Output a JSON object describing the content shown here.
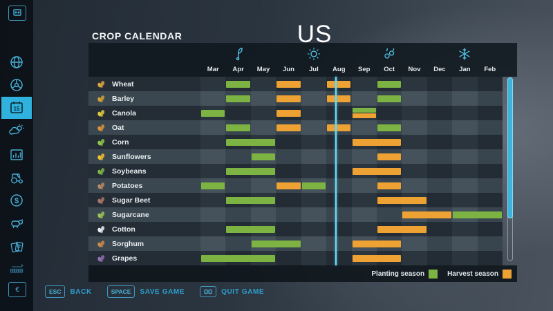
{
  "header": {
    "title": "CROP CALENDAR",
    "map_name": "US"
  },
  "sidebar": {
    "active_item": "calendar",
    "items": [
      "gamepad-key",
      "map",
      "vehicles",
      "calendar",
      "weather",
      "statistics",
      "garage",
      "finances",
      "animals",
      "contracts",
      "production-chains",
      "currency-key"
    ],
    "calendar_day": "15",
    "currency_symbol": "€"
  },
  "chart_data": {
    "type": "table",
    "title": "Crop Calendar US",
    "months": [
      "Mar",
      "Apr",
      "May",
      "Jun",
      "Jul",
      "Aug",
      "Sep",
      "Oct",
      "Nov",
      "Dec",
      "Jan",
      "Feb"
    ],
    "season_icons": [
      {
        "name": "spring-sprout-icon",
        "month_index": 1
      },
      {
        "name": "summer-sun-icon",
        "month_index": 4
      },
      {
        "name": "autumn-icon",
        "month_index": 7
      },
      {
        "name": "winter-snowflake-icon",
        "month_index": 10
      }
    ],
    "crops": [
      {
        "label": "Wheat",
        "icon_color": "#d9a53f",
        "plant": [
          1,
          7
        ],
        "harvest": [
          3,
          5
        ]
      },
      {
        "label": "Barley",
        "icon_color": "#cfa03a",
        "plant": [
          1,
          7
        ],
        "harvest": [
          3,
          5
        ]
      },
      {
        "label": "Canola",
        "icon_color": "#e0c83e",
        "plant": [
          0,
          6
        ],
        "harvest": [
          3,
          6
        ]
      },
      {
        "label": "Oat",
        "icon_color": "#d9913c",
        "plant": [
          1,
          7
        ],
        "harvest": [
          3,
          5
        ]
      },
      {
        "label": "Corn",
        "icon_color": "#8fc64a",
        "plant": [
          1,
          2
        ],
        "harvest": [
          6,
          7
        ]
      },
      {
        "label": "Sunflowers",
        "icon_color": "#f0c030",
        "plant": [
          2
        ],
        "harvest": [
          7
        ]
      },
      {
        "label": "Soybeans",
        "icon_color": "#7fb347",
        "plant": [
          1,
          2
        ],
        "harvest": [
          6,
          7
        ]
      },
      {
        "label": "Potatoes",
        "icon_color": "#b58763",
        "plant": [
          0,
          4
        ],
        "harvest": [
          3,
          7
        ]
      },
      {
        "label": "Sugar Beet",
        "icon_color": "#a9746a",
        "plant": [
          1,
          2
        ],
        "harvest": [
          7,
          8
        ]
      },
      {
        "label": "Sugarcane",
        "icon_color": "#9ac355",
        "plant": [
          10,
          11
        ],
        "harvest": [
          8,
          9
        ]
      },
      {
        "label": "Cotton",
        "icon_color": "#e8edf2",
        "plant": [
          1,
          2
        ],
        "harvest": [
          7,
          8
        ]
      },
      {
        "label": "Sorghum",
        "icon_color": "#c98a4b",
        "plant": [
          2,
          3
        ],
        "harvest": [
          6,
          7
        ]
      },
      {
        "label": "Grapes",
        "icon_color": "#8f6fb5",
        "plant": [
          0,
          1,
          2
        ],
        "harvest": [
          6,
          7
        ]
      }
    ],
    "current_day_month_offset": 5.36,
    "colors": {
      "plant": "#7cb342",
      "harvest": "#eea233"
    },
    "legend": [
      {
        "label": "Planting season",
        "color": "#7cb342"
      },
      {
        "label": "Harvest season",
        "color": "#eea233"
      }
    ]
  },
  "footer": {
    "buttons": [
      {
        "key": "ESC",
        "label": "BACK"
      },
      {
        "key": "SPACE",
        "label": "SAVE GAME"
      },
      {
        "key": "",
        "label": "QUIT GAME"
      }
    ]
  }
}
